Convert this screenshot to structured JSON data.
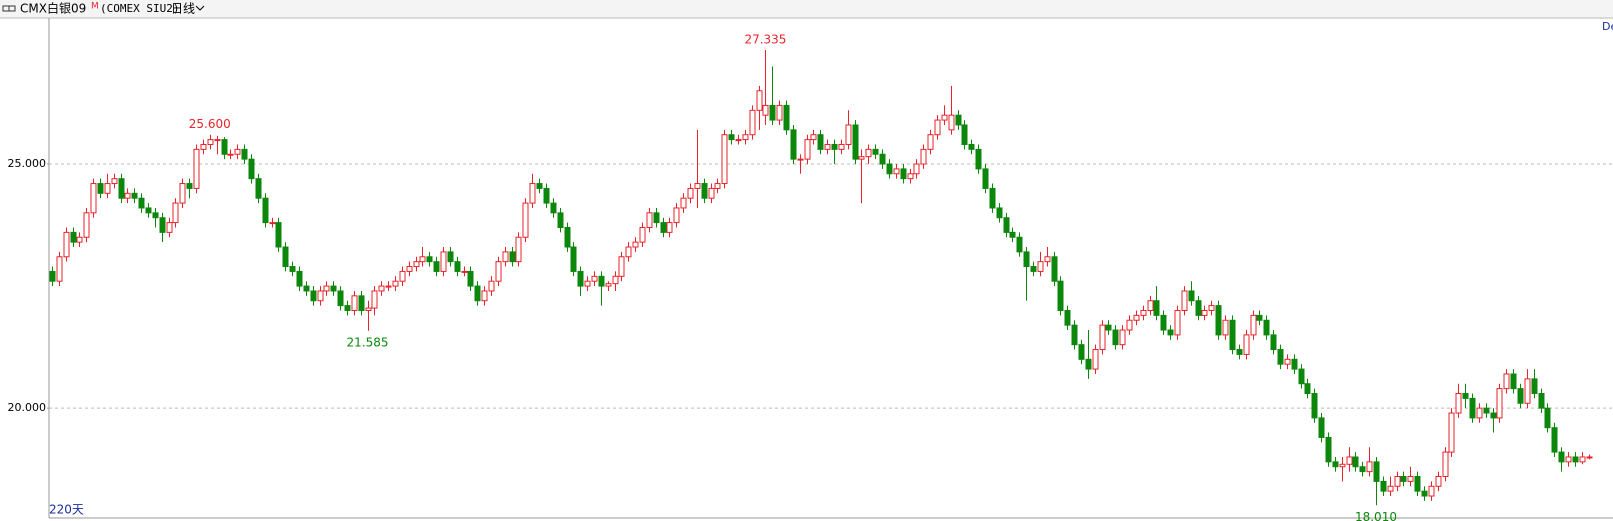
{
  "chart_data": {
    "type": "candlestick",
    "title": "CMX白银09",
    "title_mark": "M",
    "subtitle": "(COMEX SIU2)",
    "period": "日线",
    "range_label": "220天",
    "corner_label": "De",
    "up_color": "#e8232b",
    "down_color": "#0b870b",
    "grid": true,
    "ylim": [
      17.75,
      27.97
    ],
    "yticks": [
      {
        "value": 20,
        "label": "20.000"
      },
      {
        "value": 25,
        "label": "25.000"
      }
    ],
    "annotations": [
      {
        "value": 25.6,
        "label": "25.600"
      },
      {
        "value": 21.585,
        "label": "21.585"
      },
      {
        "value": 27.335,
        "label": "27.335"
      },
      {
        "value": 18.01,
        "label": "18.010"
      }
    ],
    "ohlc": [
      [
        22.8,
        22.9,
        22.5,
        22.6
      ],
      [
        22.6,
        23.2,
        22.5,
        23.1
      ],
      [
        23.1,
        23.7,
        23.0,
        23.6
      ],
      [
        23.6,
        23.7,
        23.3,
        23.4
      ],
      [
        23.4,
        23.6,
        23.3,
        23.5
      ],
      [
        23.5,
        24.1,
        23.4,
        24.0
      ],
      [
        24.0,
        24.7,
        23.9,
        24.6
      ],
      [
        24.6,
        24.7,
        24.3,
        24.4
      ],
      [
        24.4,
        24.8,
        24.3,
        24.6
      ],
      [
        24.6,
        24.8,
        24.5,
        24.7
      ],
      [
        24.7,
        24.8,
        24.2,
        24.3
      ],
      [
        24.3,
        24.5,
        24.2,
        24.4
      ],
      [
        24.4,
        24.5,
        24.2,
        24.3
      ],
      [
        24.3,
        24.4,
        24.0,
        24.1
      ],
      [
        24.1,
        24.2,
        23.9,
        24.0
      ],
      [
        24.0,
        24.1,
        23.7,
        23.9
      ],
      [
        23.9,
        24.0,
        23.4,
        23.6
      ],
      [
        23.6,
        23.9,
        23.5,
        23.8
      ],
      [
        23.8,
        24.3,
        23.7,
        24.2
      ],
      [
        24.2,
        24.7,
        24.1,
        24.6
      ],
      [
        24.6,
        24.7,
        24.3,
        24.5
      ],
      [
        24.5,
        25.4,
        24.4,
        25.3
      ],
      [
        25.3,
        25.5,
        25.2,
        25.4
      ],
      [
        25.4,
        25.6,
        25.3,
        25.5
      ],
      [
        25.5,
        25.58,
        25.2,
        25.5
      ],
      [
        25.5,
        25.55,
        25.1,
        25.2
      ],
      [
        25.2,
        25.3,
        25.1,
        25.2
      ],
      [
        25.2,
        25.4,
        25.1,
        25.3
      ],
      [
        25.3,
        25.4,
        25.0,
        25.1
      ],
      [
        25.1,
        25.2,
        24.6,
        24.7
      ],
      [
        24.7,
        24.8,
        24.2,
        24.3
      ],
      [
        24.3,
        24.4,
        23.7,
        23.8
      ],
      [
        23.8,
        23.9,
        23.7,
        23.8
      ],
      [
        23.8,
        23.9,
        23.2,
        23.3
      ],
      [
        23.3,
        23.4,
        22.8,
        22.9
      ],
      [
        22.9,
        23.0,
        22.7,
        22.8
      ],
      [
        22.8,
        22.9,
        22.4,
        22.5
      ],
      [
        22.5,
        22.6,
        22.3,
        22.4
      ],
      [
        22.4,
        22.5,
        22.1,
        22.2
      ],
      [
        22.2,
        22.5,
        22.1,
        22.4
      ],
      [
        22.4,
        22.6,
        22.3,
        22.5
      ],
      [
        22.5,
        22.6,
        22.3,
        22.4
      ],
      [
        22.4,
        22.5,
        22.0,
        22.1
      ],
      [
        22.1,
        22.2,
        21.9,
        22.0
      ],
      [
        22.0,
        22.4,
        21.9,
        22.3
      ],
      [
        22.3,
        22.4,
        21.9,
        22.0
      ],
      [
        22.0,
        22.2,
        21.585,
        22.05
      ],
      [
        22.05,
        22.5,
        21.9,
        22.4
      ],
      [
        22.4,
        22.6,
        22.3,
        22.5
      ],
      [
        22.5,
        22.6,
        22.4,
        22.5
      ],
      [
        22.5,
        22.7,
        22.4,
        22.6
      ],
      [
        22.6,
        22.9,
        22.5,
        22.8
      ],
      [
        22.8,
        23.0,
        22.7,
        22.9
      ],
      [
        22.9,
        23.1,
        22.8,
        23.0
      ],
      [
        23.0,
        23.3,
        22.9,
        23.1
      ],
      [
        23.1,
        23.2,
        22.9,
        23.0
      ],
      [
        23.0,
        23.1,
        22.7,
        22.8
      ],
      [
        22.8,
        23.3,
        22.7,
        23.2
      ],
      [
        23.2,
        23.3,
        22.9,
        23.0
      ],
      [
        23.0,
        23.1,
        22.7,
        22.8
      ],
      [
        22.8,
        22.9,
        22.7,
        22.8
      ],
      [
        22.8,
        22.9,
        22.4,
        22.5
      ],
      [
        22.5,
        22.6,
        22.1,
        22.2
      ],
      [
        22.2,
        22.5,
        22.1,
        22.4
      ],
      [
        22.4,
        22.7,
        22.3,
        22.6
      ],
      [
        22.6,
        23.1,
        22.5,
        23.0
      ],
      [
        23.0,
        23.3,
        22.9,
        23.2
      ],
      [
        23.2,
        23.3,
        22.9,
        23.0
      ],
      [
        23.0,
        23.6,
        22.9,
        23.5
      ],
      [
        23.5,
        24.3,
        23.4,
        24.2
      ],
      [
        24.2,
        24.8,
        24.1,
        24.6
      ],
      [
        24.6,
        24.7,
        24.4,
        24.5
      ],
      [
        24.5,
        24.6,
        24.1,
        24.2
      ],
      [
        24.2,
        24.3,
        23.9,
        24.0
      ],
      [
        24.0,
        24.1,
        23.6,
        23.7
      ],
      [
        23.7,
        23.8,
        23.2,
        23.3
      ],
      [
        23.3,
        23.4,
        22.7,
        22.8
      ],
      [
        22.8,
        22.9,
        22.3,
        22.5
      ],
      [
        22.5,
        22.7,
        22.4,
        22.6
      ],
      [
        22.6,
        22.8,
        22.5,
        22.7
      ],
      [
        22.7,
        22.8,
        22.1,
        22.5
      ],
      [
        22.5,
        22.6,
        22.4,
        22.55
      ],
      [
        22.55,
        22.8,
        22.4,
        22.7
      ],
      [
        22.7,
        23.2,
        22.6,
        23.1
      ],
      [
        23.1,
        23.4,
        23.0,
        23.3
      ],
      [
        23.3,
        23.5,
        23.2,
        23.4
      ],
      [
        23.4,
        23.8,
        23.3,
        23.7
      ],
      [
        23.7,
        24.1,
        23.6,
        24.0
      ],
      [
        24.0,
        24.1,
        23.7,
        23.8
      ],
      [
        23.8,
        23.9,
        23.5,
        23.6
      ],
      [
        23.6,
        23.9,
        23.5,
        23.8
      ],
      [
        23.8,
        24.2,
        23.7,
        24.1
      ],
      [
        24.1,
        24.4,
        24.0,
        24.3
      ],
      [
        24.3,
        24.6,
        24.2,
        24.5
      ],
      [
        24.5,
        25.7,
        24.1,
        24.6
      ],
      [
        24.6,
        24.7,
        24.2,
        24.3
      ],
      [
        24.3,
        24.6,
        24.2,
        24.5
      ],
      [
        24.5,
        24.7,
        24.4,
        24.6
      ],
      [
        24.6,
        25.7,
        24.5,
        25.6
      ],
      [
        25.6,
        25.7,
        25.4,
        25.5
      ],
      [
        25.5,
        25.6,
        25.4,
        25.5
      ],
      [
        25.5,
        25.7,
        25.4,
        25.6
      ],
      [
        25.6,
        26.2,
        25.5,
        26.1
      ],
      [
        26.1,
        26.6,
        25.7,
        26.5
      ],
      [
        26.0,
        27.335,
        25.8,
        26.2
      ],
      [
        26.2,
        27.0,
        25.8,
        25.9
      ],
      [
        25.9,
        26.3,
        25.8,
        26.2
      ],
      [
        26.2,
        26.3,
        25.6,
        25.7
      ],
      [
        25.7,
        25.8,
        25.0,
        25.1
      ],
      [
        25.1,
        25.2,
        24.8,
        25.1
      ],
      [
        25.1,
        25.6,
        25.0,
        25.5
      ],
      [
        25.5,
        25.7,
        25.4,
        25.6
      ],
      [
        25.6,
        25.7,
        25.2,
        25.3
      ],
      [
        25.3,
        25.5,
        25.2,
        25.4
      ],
      [
        25.4,
        25.5,
        25.0,
        25.3
      ],
      [
        25.3,
        25.5,
        25.2,
        25.4
      ],
      [
        25.4,
        26.1,
        25.3,
        25.8
      ],
      [
        25.8,
        25.9,
        25.0,
        25.1
      ],
      [
        25.1,
        25.3,
        24.2,
        25.15
      ],
      [
        25.15,
        25.4,
        25.0,
        25.3
      ],
      [
        25.3,
        25.4,
        25.1,
        25.2
      ],
      [
        25.2,
        25.3,
        24.9,
        25.0
      ],
      [
        25.0,
        25.1,
        24.7,
        24.8
      ],
      [
        24.8,
        25.0,
        24.7,
        24.9
      ],
      [
        24.9,
        25.0,
        24.6,
        24.7
      ],
      [
        24.7,
        24.9,
        24.6,
        24.8
      ],
      [
        24.8,
        25.1,
        24.7,
        25.0
      ],
      [
        25.0,
        25.4,
        24.9,
        25.3
      ],
      [
        25.3,
        25.7,
        25.2,
        25.6
      ],
      [
        25.6,
        26.0,
        25.5,
        25.9
      ],
      [
        25.9,
        26.2,
        25.8,
        26.0
      ],
      [
        25.7,
        26.6,
        25.6,
        26.0
      ],
      [
        26.0,
        26.1,
        25.7,
        25.8
      ],
      [
        25.8,
        25.9,
        25.3,
        25.4
      ],
      [
        25.4,
        25.5,
        25.2,
        25.3
      ],
      [
        25.3,
        25.4,
        24.8,
        24.9
      ],
      [
        24.9,
        25.0,
        24.4,
        24.5
      ],
      [
        24.5,
        24.6,
        24.0,
        24.1
      ],
      [
        24.1,
        24.2,
        23.8,
        23.9
      ],
      [
        23.9,
        24.0,
        23.5,
        23.6
      ],
      [
        23.6,
        23.7,
        23.4,
        23.5
      ],
      [
        23.5,
        23.6,
        23.1,
        23.2
      ],
      [
        23.2,
        23.3,
        22.2,
        22.9
      ],
      [
        22.9,
        23.0,
        22.7,
        22.8
      ],
      [
        22.8,
        23.2,
        22.7,
        23.0
      ],
      [
        23.0,
        23.3,
        22.9,
        23.1
      ],
      [
        23.1,
        23.2,
        22.5,
        22.6
      ],
      [
        22.6,
        22.7,
        21.9,
        22.0
      ],
      [
        22.0,
        22.1,
        21.6,
        21.7
      ],
      [
        21.7,
        21.8,
        21.2,
        21.3
      ],
      [
        21.3,
        21.4,
        20.9,
        21.0
      ],
      [
        21.0,
        21.6,
        20.6,
        20.8
      ],
      [
        20.8,
        21.3,
        20.7,
        21.2
      ],
      [
        21.2,
        21.8,
        21.1,
        21.7
      ],
      [
        21.7,
        21.8,
        21.5,
        21.6
      ],
      [
        21.6,
        21.7,
        21.2,
        21.3
      ],
      [
        21.3,
        21.7,
        21.2,
        21.6
      ],
      [
        21.6,
        21.9,
        21.5,
        21.8
      ],
      [
        21.8,
        22.0,
        21.7,
        21.9
      ],
      [
        21.9,
        22.1,
        21.8,
        22.0
      ],
      [
        22.0,
        22.3,
        21.9,
        22.2
      ],
      [
        22.2,
        22.5,
        21.8,
        21.9
      ],
      [
        21.9,
        22.0,
        21.5,
        21.6
      ],
      [
        21.6,
        21.7,
        21.4,
        21.5
      ],
      [
        21.5,
        22.1,
        21.4,
        22.0
      ],
      [
        22.0,
        22.5,
        21.9,
        22.4
      ],
      [
        22.4,
        22.6,
        22.1,
        22.2
      ],
      [
        22.2,
        22.3,
        21.8,
        21.9
      ],
      [
        21.9,
        22.1,
        21.8,
        22.0
      ],
      [
        22.0,
        22.2,
        21.9,
        22.1
      ],
      [
        22.1,
        22.2,
        21.4,
        21.5
      ],
      [
        21.5,
        21.9,
        21.4,
        21.8
      ],
      [
        21.8,
        21.9,
        21.1,
        21.2
      ],
      [
        21.2,
        21.3,
        21.0,
        21.1
      ],
      [
        21.1,
        21.6,
        21.0,
        21.5
      ],
      [
        21.5,
        22.0,
        21.4,
        21.9
      ],
      [
        21.9,
        22.0,
        21.7,
        21.8
      ],
      [
        21.8,
        21.9,
        21.4,
        21.5
      ],
      [
        21.5,
        21.6,
        21.1,
        21.2
      ],
      [
        21.2,
        21.3,
        20.8,
        20.9
      ],
      [
        20.9,
        21.1,
        20.8,
        21.0
      ],
      [
        21.0,
        21.1,
        20.7,
        20.8
      ],
      [
        20.8,
        20.9,
        20.4,
        20.5
      ],
      [
        20.5,
        20.6,
        20.2,
        20.3
      ],
      [
        20.3,
        20.4,
        19.7,
        19.8
      ],
      [
        19.8,
        19.9,
        19.3,
        19.4
      ],
      [
        19.4,
        19.5,
        18.8,
        18.9
      ],
      [
        18.9,
        19.0,
        18.7,
        18.8
      ],
      [
        18.8,
        19.0,
        18.5,
        18.85
      ],
      [
        18.85,
        19.2,
        18.7,
        19.0
      ],
      [
        19.0,
        19.1,
        18.7,
        18.8
      ],
      [
        18.8,
        18.9,
        18.6,
        18.7
      ],
      [
        18.7,
        19.2,
        18.6,
        18.9
      ],
      [
        18.9,
        19.0,
        18.01,
        18.5
      ],
      [
        18.5,
        18.6,
        18.2,
        18.3
      ],
      [
        18.3,
        18.6,
        18.2,
        18.4
      ],
      [
        18.4,
        18.7,
        18.3,
        18.6
      ],
      [
        18.6,
        18.7,
        18.4,
        18.5
      ],
      [
        18.5,
        18.8,
        18.4,
        18.6
      ],
      [
        18.6,
        18.7,
        18.2,
        18.3
      ],
      [
        18.3,
        18.4,
        18.1,
        18.2
      ],
      [
        18.2,
        18.5,
        18.1,
        18.4
      ],
      [
        18.4,
        18.7,
        18.3,
        18.6
      ],
      [
        18.6,
        19.2,
        18.5,
        19.1
      ],
      [
        19.1,
        20.0,
        19.0,
        19.9
      ],
      [
        19.9,
        20.5,
        19.8,
        20.3
      ],
      [
        20.3,
        20.5,
        20.0,
        20.2
      ],
      [
        20.2,
        20.3,
        19.7,
        19.8
      ],
      [
        19.8,
        20.1,
        19.7,
        20.0
      ],
      [
        20.0,
        20.1,
        19.8,
        19.9
      ],
      [
        19.9,
        20.0,
        19.5,
        19.8
      ],
      [
        19.8,
        20.5,
        19.7,
        20.4
      ],
      [
        20.4,
        20.8,
        20.3,
        20.7
      ],
      [
        20.7,
        20.8,
        20.3,
        20.4
      ],
      [
        20.4,
        20.5,
        20.0,
        20.1
      ],
      [
        20.1,
        20.8,
        20.0,
        20.6
      ],
      [
        20.6,
        20.8,
        20.2,
        20.3
      ],
      [
        20.3,
        20.4,
        19.9,
        20.0
      ],
      [
        20.0,
        20.1,
        19.5,
        19.6
      ],
      [
        19.6,
        19.7,
        19.0,
        19.1
      ],
      [
        19.1,
        19.2,
        18.7,
        18.9
      ],
      [
        18.9,
        19.1,
        18.8,
        19.0
      ],
      [
        19.0,
        19.1,
        18.8,
        18.9
      ],
      [
        18.9,
        19.1,
        18.85,
        19.0
      ],
      [
        19.0,
        19.05,
        18.95,
        19.0
      ]
    ]
  }
}
